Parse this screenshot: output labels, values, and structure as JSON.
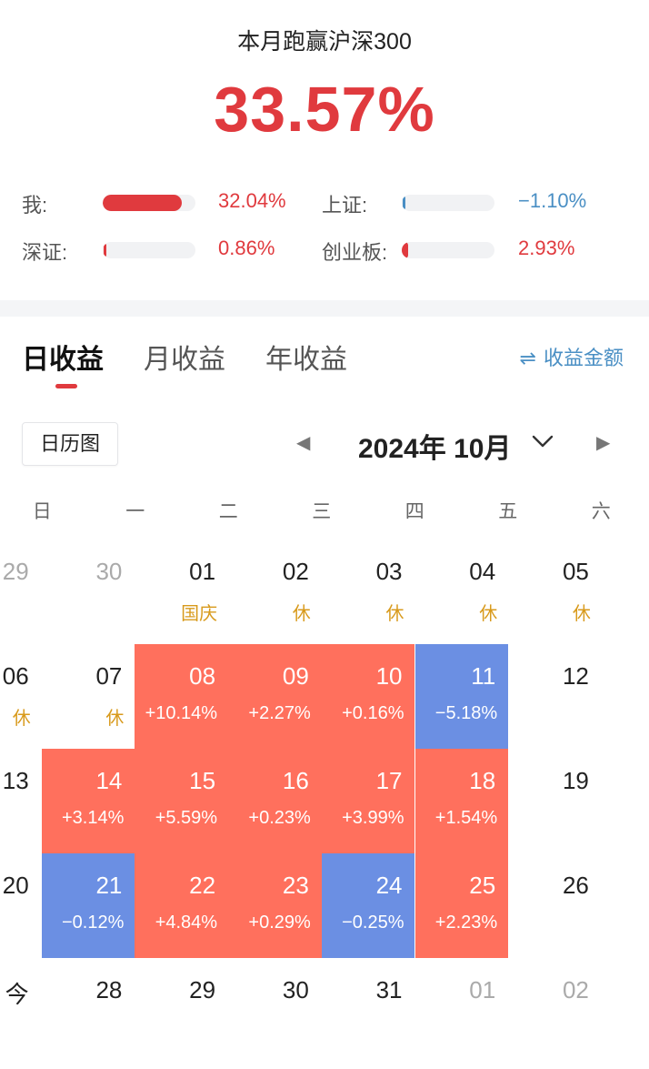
{
  "summary": {
    "title": "本月跑赢沪深300",
    "value": "33.57%",
    "colors": {
      "up": "#e03a3e",
      "down": "#4a8fc4"
    },
    "comparisons": [
      {
        "label": "我:",
        "value": "32.04%",
        "fill": 0.85,
        "direction": "up"
      },
      {
        "label": "上证:",
        "value": "−1.10%",
        "fill": 0.03,
        "direction": "down"
      },
      {
        "label": "深证:",
        "value": "0.86%",
        "fill": 0.02,
        "direction": "up"
      },
      {
        "label": "创业板:",
        "value": "2.93%",
        "fill": 0.07,
        "direction": "up"
      }
    ]
  },
  "tabs": {
    "items": [
      "日收益",
      "月收益",
      "年收益"
    ],
    "active": "日收益",
    "toggle_label": "收益金额",
    "toggle_icon": "swap-icon"
  },
  "calendar": {
    "view_button": "日历图",
    "month_label": "2024年 10月",
    "weekdays": [
      "日",
      "一",
      "二",
      "三",
      "四",
      "五",
      "六"
    ],
    "colors": {
      "up": "#ff705d",
      "down": "#6b8fe3",
      "holiday": "#d89a1c"
    },
    "weeks": [
      [
        {
          "day": "29",
          "muted": true
        },
        {
          "day": "30",
          "muted": true
        },
        {
          "day": "01",
          "note": "国庆"
        },
        {
          "day": "02",
          "note": "休"
        },
        {
          "day": "03",
          "note": "休"
        },
        {
          "day": "04",
          "note": "休"
        },
        {
          "day": "05",
          "note": "休"
        }
      ],
      [
        {
          "day": "06",
          "note": "休"
        },
        {
          "day": "07",
          "note": "休"
        },
        {
          "day": "08",
          "change": "+10.14%",
          "dir": "up"
        },
        {
          "day": "09",
          "change": "+2.27%",
          "dir": "up"
        },
        {
          "day": "10",
          "change": "+0.16%",
          "dir": "up"
        },
        {
          "day": "11",
          "change": "−5.18%",
          "dir": "down"
        },
        {
          "day": "12"
        }
      ],
      [
        {
          "day": "13"
        },
        {
          "day": "14",
          "change": "+3.14%",
          "dir": "up"
        },
        {
          "day": "15",
          "change": "+5.59%",
          "dir": "up"
        },
        {
          "day": "16",
          "change": "+0.23%",
          "dir": "up"
        },
        {
          "day": "17",
          "change": "+3.99%",
          "dir": "up"
        },
        {
          "day": "18",
          "change": "+1.54%",
          "dir": "up"
        },
        {
          "day": "19"
        }
      ],
      [
        {
          "day": "20"
        },
        {
          "day": "21",
          "change": "−0.12%",
          "dir": "down"
        },
        {
          "day": "22",
          "change": "+4.84%",
          "dir": "up"
        },
        {
          "day": "23",
          "change": "+0.29%",
          "dir": "up"
        },
        {
          "day": "24",
          "change": "−0.25%",
          "dir": "down"
        },
        {
          "day": "25",
          "change": "+2.23%",
          "dir": "up"
        },
        {
          "day": "26"
        }
      ],
      [
        {
          "day": "今"
        },
        {
          "day": "28"
        },
        {
          "day": "29"
        },
        {
          "day": "30"
        },
        {
          "day": "31"
        },
        {
          "day": "01",
          "muted": true
        },
        {
          "day": "02",
          "muted": true
        }
      ]
    ]
  }
}
